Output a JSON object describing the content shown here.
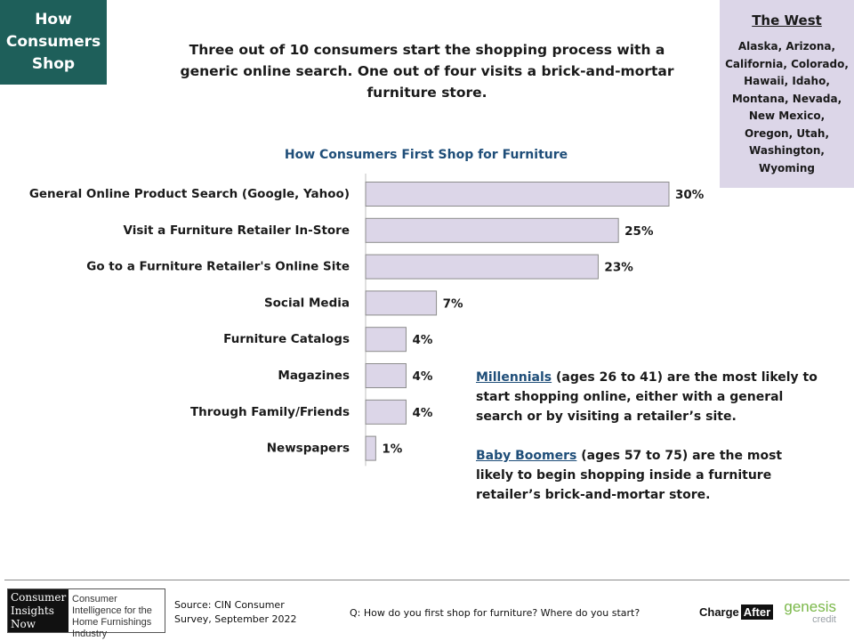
{
  "badge": {
    "lines": [
      "How",
      "Consumers",
      "Shop"
    ]
  },
  "headline": "Three out of 10 consumers start the shopping process with a generic online search. One out of four visits a brick-and-mortar furniture store.",
  "region": {
    "title": "The West",
    "states": "Alaska, Arizona, California, Colorado, Hawaii, Idaho, Montana, Nevada, New Mexico, Oregon, Utah, Washington, Wyoming"
  },
  "chart_data": {
    "type": "bar",
    "orientation": "horizontal",
    "title": "How Consumers First Shop for Furniture",
    "categories": [
      "General Online Product Search (Google, Yahoo)",
      "Visit a Furniture Retailer In-Store",
      "Go to a Furniture Retailer's Online Site",
      "Social Media",
      "Furniture Catalogs",
      "Magazines",
      "Through Family/Friends",
      "Newspapers"
    ],
    "values": [
      30,
      25,
      23,
      7,
      4,
      4,
      4,
      1
    ],
    "value_labels": [
      "30%",
      "25%",
      "23%",
      "7%",
      "4%",
      "4%",
      "4%",
      "1%"
    ],
    "unit": "%",
    "bar_color": "#dcd6e8",
    "bar_border": "#8c8c8c",
    "xlim": [
      0,
      30
    ],
    "grid": false,
    "legend": "none"
  },
  "insights": [
    {
      "term": "Millennials",
      "text": " (ages 26 to 41) are the most likely to start shopping online, either with a general search or by visiting a retailer’s site."
    },
    {
      "term": "Baby Boomers",
      "text": " (ages 57 to 75) are the most likely to begin shopping inside a furniture retailer’s brick-and-mortar store."
    }
  ],
  "footer": {
    "cin_logo_left": "Consumer Insights Now",
    "cin_logo_right": "Consumer Intelligence for the Home Furnishings Industry",
    "source": "Source: CIN Consumer Survey, September 2022",
    "question": "Q: How do you first shop for furniture? Where do you start?",
    "charge_after_a": "Charge",
    "charge_after_b": "After",
    "genesis_a": "genesis",
    "genesis_b": "credit"
  }
}
